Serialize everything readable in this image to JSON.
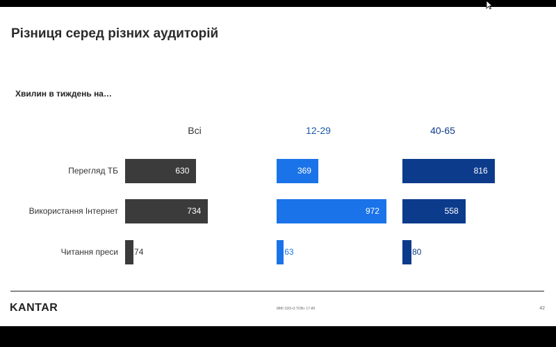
{
  "slide": {
    "title": "Різниця серед різних аудиторій",
    "subtitle": "Хвилин в тиждень на…",
    "logo": "KANTAR",
    "footnote": "MMI 19/2+3 TOB+ 17-89",
    "page_number": "42"
  },
  "colors": {
    "Всі": "#3b3b3b",
    "12-29": "#1a73e8",
    "40-65": "#0d3b8c",
    "header_Всі": "#333333",
    "header_12-29": "#1a5aa8",
    "header_40-65": "#0d3b8c"
  },
  "chart_data": {
    "type": "bar",
    "orientation": "horizontal",
    "title": "Хвилин в тиждень на…",
    "categories": [
      "Перегляд ТБ",
      "Використання Інтернет",
      "Читання преси"
    ],
    "series": [
      {
        "name": "Всі",
        "values": [
          630,
          734,
          74
        ]
      },
      {
        "name": "12-29",
        "values": [
          369,
          972,
          63
        ]
      },
      {
        "name": "40-65",
        "values": [
          816,
          558,
          80
        ]
      }
    ],
    "xlim": [
      0,
      1200
    ],
    "grid": false,
    "legend": "none"
  }
}
